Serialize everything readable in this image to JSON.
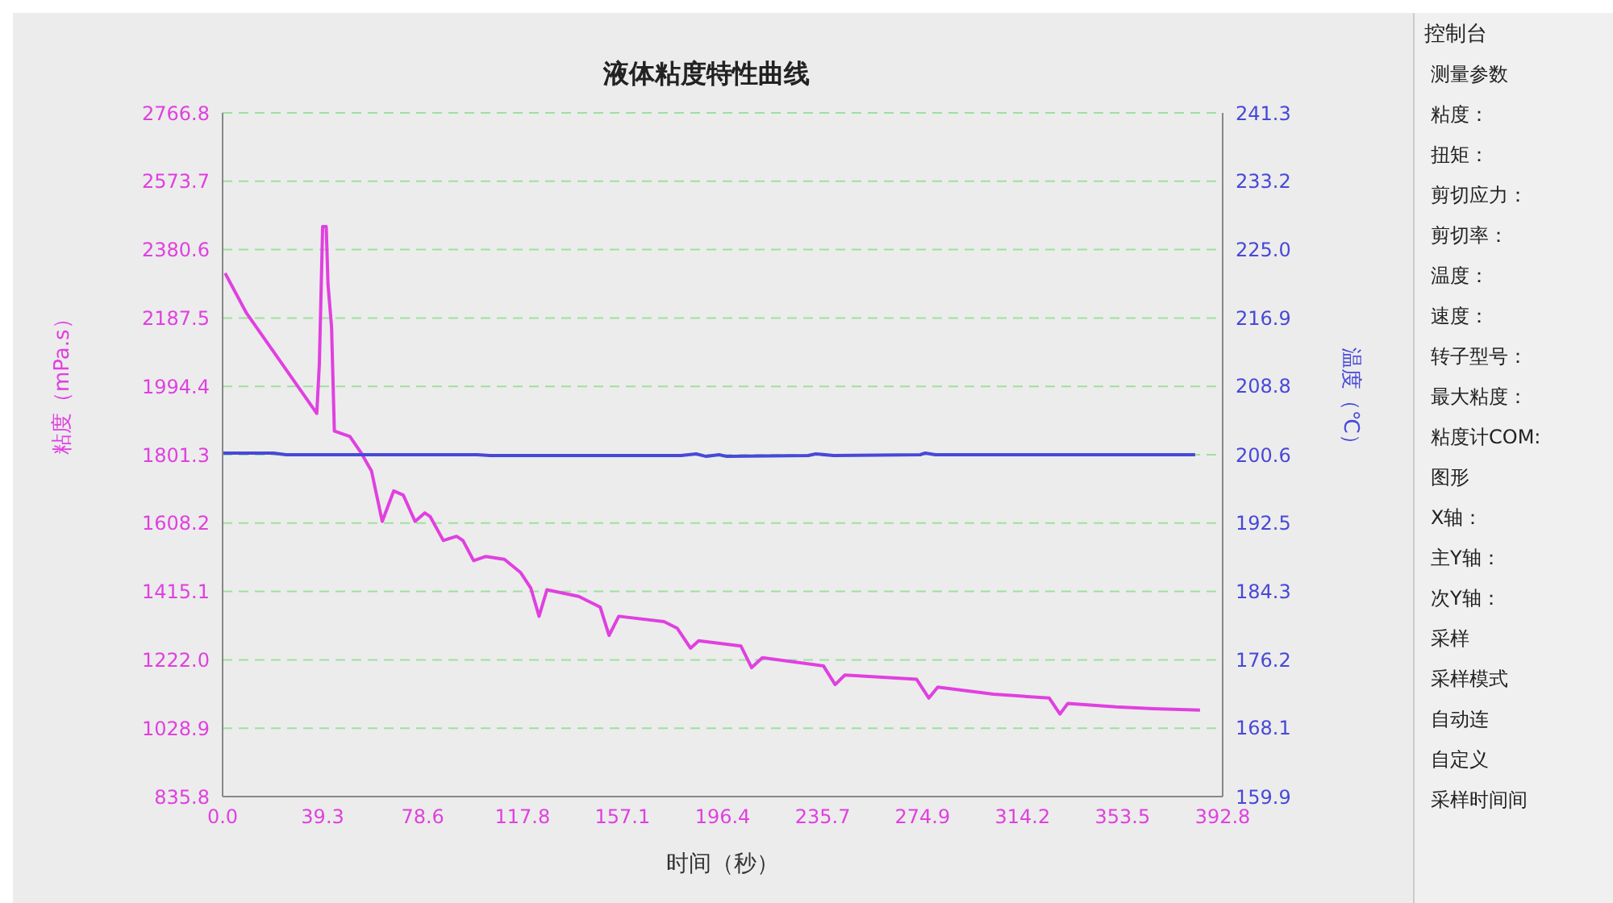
{
  "chart_data": [
    {
      "type": "line",
      "title": "液体粘度特性曲线",
      "xlabel": "时间（秒）",
      "ylabel": "粘度（mPa.s）",
      "y2label": "温度（℃）",
      "xlim": [
        0,
        392.8
      ],
      "xticks": [
        {
          "value": 0,
          "label": "0.0"
        },
        39.3,
        78.6,
        117.8,
        157.1,
        196.4,
        235.7,
        274.9,
        314.2,
        353.5,
        392.8
      ],
      "ylim": [
        835.8,
        2766.8
      ],
      "yticks": [
        835.8,
        1028.9,
        {
          "value": 1222,
          "label": "1222.0"
        },
        1415.1,
        1608.2,
        1801.3,
        1994.4,
        2187.5,
        2380.6,
        2573.7,
        2766.8
      ],
      "y2lim": [
        159.9,
        241.3
      ],
      "y2ticks": [
        159.9,
        168.1,
        176.2,
        184.3,
        192.5,
        200.6,
        208.8,
        216.9,
        {
          "value": 225,
          "label": "225.0"
        },
        233.2,
        241.3
      ],
      "grid": true,
      "marker": "none",
      "line_style": "solid",
      "series": [
        {
          "color": "#e040e0",
          "x": [
            1,
            9.4,
            37,
            38,
            39.3,
            40.7,
            41.4,
            42.8,
            43.9,
            50,
            54.3,
            58.5,
            62.7,
            67.2,
            71,
            75.6,
            79.4,
            81.5,
            86.7,
            91.9,
            94.4,
            98.6,
            103.4,
            110.7,
            117,
            121.1,
            124.3,
            127.4,
            139.9,
            148.3,
            151.8,
            155.6,
            173.4,
            178.6,
            183.8,
            187,
            203.6,
            207.8,
            212,
            236,
            240.6,
            244.4,
            272.6,
            277.4,
            280.9,
            302.8,
            324.7,
            328.9,
            332,
            350.9,
            365.5,
            383.9
          ],
          "values": [
            2314,
            2201,
            1918,
            2057,
            2446,
            2446,
            2283,
            2162,
            1868,
            1853,
            1808,
            1755,
            1613,
            1699,
            1687,
            1613,
            1637,
            1627,
            1559,
            1571,
            1559,
            1502,
            1514,
            1506,
            1469,
            1424,
            1345,
            1420,
            1401,
            1371,
            1291,
            1345,
            1330,
            1311,
            1255,
            1276,
            1261,
            1200,
            1228,
            1205,
            1152,
            1179,
            1167,
            1114,
            1145,
            1125,
            1114,
            1069,
            1099,
            1089,
            1084,
            1080
          ]
        },
        {
          "color": "#4848d8",
          "axis": "y2",
          "x": [
            0,
            20,
            25,
            100,
            105,
            180,
            186,
            190,
            195,
            198,
            230,
            233,
            240,
            274,
            276,
            280,
            382
          ],
          "values": [
            200.8,
            200.8,
            200.6,
            200.6,
            200.5,
            200.5,
            200.7,
            200.4,
            200.6,
            200.4,
            200.5,
            200.7,
            200.5,
            200.6,
            200.8,
            200.6,
            200.6
          ]
        }
      ]
    },
    {
      "type": "other",
      "title": "控制台",
      "annotations": [
        "测量参数",
        "粘度：",
        "扭矩：",
        "剪切应力：",
        "剪切率：",
        "温度：",
        "速度：",
        "转子型号：",
        "最大粘度：",
        "粘度计COM:",
        "图形",
        "X轴：",
        "主Y轴：",
        "次Y轴：",
        "采样",
        "采样模式",
        "自动连",
        "自定义",
        "采样时间间"
      ]
    }
  ]
}
